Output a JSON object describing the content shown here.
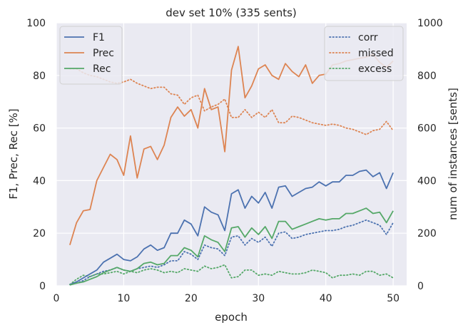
{
  "chart_data": {
    "type": "line",
    "title": "dev set 10% (335 sents)",
    "xlabel": "epoch",
    "ylabel_left": "F1, Prec, Rec [%]",
    "ylabel_right": "num of instances [sents]",
    "xlim": [
      0,
      52
    ],
    "ylim_left": [
      0,
      100
    ],
    "ylim_right": [
      0,
      1000
    ],
    "xticks": [
      0,
      10,
      20,
      30,
      40,
      50
    ],
    "yticks_left": [
      0,
      20,
      40,
      60,
      80,
      100
    ],
    "yticks_right": [
      0,
      200,
      400,
      600,
      800,
      1000
    ],
    "grid": true,
    "x": [
      2,
      3,
      4,
      5,
      6,
      7,
      8,
      9,
      10,
      11,
      12,
      13,
      14,
      15,
      16,
      17,
      18,
      19,
      20,
      21,
      22,
      23,
      24,
      25,
      26,
      27,
      28,
      29,
      30,
      31,
      32,
      33,
      34,
      35,
      36,
      37,
      38,
      39,
      40,
      41,
      42,
      43,
      44,
      45,
      46,
      47,
      48,
      49,
      50
    ],
    "series_left": [
      {
        "name": "F1",
        "color": "#4c72b0",
        "style": "solid",
        "values": [
          0.5,
          1.5,
          3.0,
          4.5,
          6.0,
          9.0,
          10.5,
          12.0,
          10.0,
          9.5,
          11.0,
          14.0,
          15.5,
          13.5,
          14.5,
          20.0,
          20.0,
          25.0,
          23.5,
          19.0,
          30.0,
          28.0,
          27.0,
          21.0,
          35.0,
          36.5,
          29.5,
          34.0,
          31.5,
          35.5,
          29.5,
          37.5,
          38.0,
          34.0,
          35.5,
          37.0,
          37.5,
          39.5,
          38.0,
          39.5,
          39.5,
          42.0,
          42.0,
          43.5,
          44.0,
          41.5,
          43.0,
          37.0,
          43.0
        ]
      },
      {
        "name": "Prec",
        "color": "#dd8452",
        "style": "solid",
        "values": [
          15.5,
          24.0,
          28.5,
          29.0,
          40.0,
          45.0,
          50.0,
          48.0,
          42.0,
          57.0,
          41.0,
          52.0,
          53.0,
          48.0,
          53.5,
          64.0,
          68.0,
          64.5,
          67.0,
          60.0,
          75.0,
          67.0,
          68.0,
          51.0,
          82.0,
          91.0,
          71.5,
          76.0,
          82.5,
          84.0,
          80.0,
          78.5,
          84.5,
          81.5,
          79.5,
          84.0,
          77.0,
          80.0,
          80.5,
          84.0,
          84.5,
          85.5,
          86.0,
          86.5,
          87.0,
          88.0,
          85.0,
          83.0,
          85.5
        ]
      },
      {
        "name": "Rec",
        "color": "#55a868",
        "style": "solid",
        "values": [
          0.3,
          1.0,
          1.5,
          2.5,
          3.5,
          5.0,
          6.0,
          7.0,
          6.0,
          5.5,
          6.5,
          8.5,
          9.0,
          8.0,
          8.5,
          11.5,
          11.5,
          14.5,
          13.5,
          11.0,
          19.0,
          17.5,
          16.5,
          13.0,
          22.0,
          22.5,
          18.5,
          22.0,
          19.5,
          22.5,
          18.0,
          24.5,
          24.5,
          21.5,
          22.5,
          23.5,
          24.5,
          25.5,
          25.0,
          25.5,
          25.5,
          27.5,
          27.5,
          28.5,
          29.5,
          27.5,
          28.0,
          24.0,
          28.5
        ]
      }
    ],
    "series_right": [
      {
        "name": "corr",
        "color": "#4c72b0",
        "style": "dotted",
        "values": [
          5,
          10,
          20,
          35,
          45,
          55,
          60,
          70,
          60,
          55,
          65,
          70,
          75,
          70,
          80,
          95,
          95,
          130,
          120,
          100,
          155,
          145,
          140,
          115,
          185,
          190,
          155,
          180,
          165,
          185,
          150,
          200,
          205,
          180,
          185,
          195,
          200,
          205,
          210,
          210,
          215,
          225,
          230,
          240,
          250,
          240,
          230,
          195,
          240
        ]
      },
      {
        "name": "missed",
        "color": "#dd8452",
        "style": "dotted",
        "values": [
          825,
          825,
          810,
          800,
          795,
          785,
          775,
          770,
          775,
          785,
          770,
          760,
          750,
          755,
          755,
          730,
          725,
          690,
          715,
          725,
          665,
          680,
          690,
          710,
          640,
          640,
          670,
          640,
          660,
          640,
          670,
          620,
          620,
          645,
          640,
          630,
          620,
          615,
          610,
          615,
          610,
          600,
          595,
          585,
          575,
          590,
          595,
          625,
          590
        ]
      },
      {
        "name": "excess",
        "color": "#55a868",
        "style": "dotted",
        "values": [
          5,
          25,
          40,
          35,
          45,
          45,
          50,
          55,
          45,
          55,
          50,
          60,
          65,
          60,
          50,
          55,
          50,
          65,
          60,
          55,
          75,
          65,
          70,
          80,
          30,
          35,
          60,
          60,
          40,
          45,
          40,
          55,
          50,
          45,
          45,
          50,
          60,
          55,
          50,
          30,
          40,
          40,
          45,
          40,
          55,
          55,
          40,
          45,
          30
        ]
      }
    ]
  }
}
